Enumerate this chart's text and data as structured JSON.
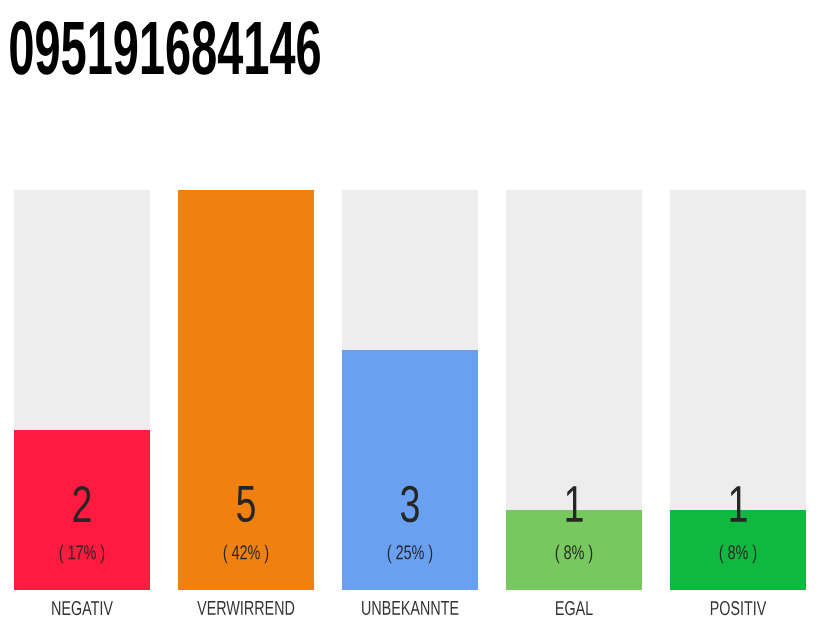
{
  "chart_data": {
    "type": "bar",
    "title": "095191684146",
    "categories": [
      "NEGATIV",
      "VERWIRREND",
      "UNBEKANNTE",
      "EGAL",
      "POSITIV"
    ],
    "values": [
      2,
      5,
      3,
      1,
      1
    ],
    "colors": [
      "#ff1a40",
      "#f08010",
      "#6aa0f0",
      "#78c860",
      "#10b840"
    ],
    "data_labels": true,
    "annotations": [
      "( 17% )",
      "( 42% )",
      "( 25% )",
      "( 8% )",
      "( 8% )"
    ]
  }
}
